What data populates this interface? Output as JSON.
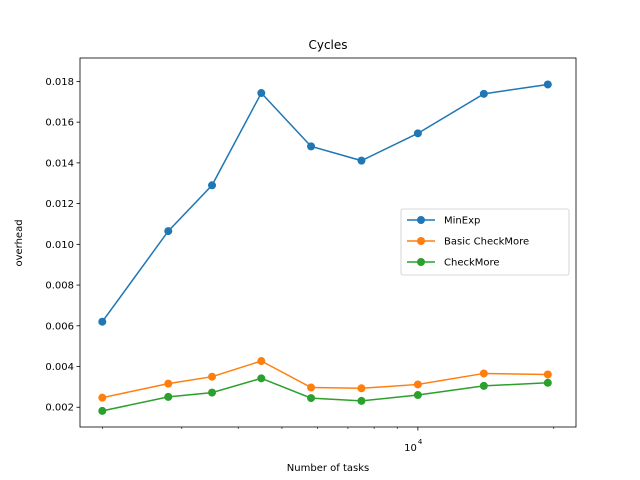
{
  "chart_data": {
    "type": "line",
    "title": "Cycles",
    "xlabel": "Number of tasks",
    "ylabel": "overhead",
    "xscale": "log",
    "xlim": [
      1785,
      22400
    ],
    "ylim": [
      0.00103,
      0.01915
    ],
    "x_major_tick": {
      "value": 10000,
      "label": "10",
      "exponent": "4"
    },
    "x_minor_ticks": [
      2000,
      3000,
      4000,
      5000,
      6000,
      7000,
      8000,
      9000,
      20000
    ],
    "y_ticks": [
      0.002,
      0.004,
      0.006,
      0.008,
      0.01,
      0.012,
      0.014,
      0.016,
      0.018
    ],
    "y_tick_labels": [
      "0.002",
      "0.004",
      "0.006",
      "0.008",
      "0.010",
      "0.012",
      "0.014",
      "0.016",
      "0.018"
    ],
    "grid": false,
    "legend_position": "center-right",
    "x": [
      2000,
      2800,
      3500,
      4500,
      5800,
      7500,
      10000,
      14000,
      19400
    ],
    "series": [
      {
        "name": "MinExp",
        "color": "#1f77b4",
        "values": [
          0.0062,
          0.01065,
          0.0129,
          0.01743,
          0.01481,
          0.01411,
          0.01545,
          0.01739,
          0.01785
        ]
      },
      {
        "name": "Basic CheckMore",
        "color": "#ff7f0e",
        "values": [
          0.00247,
          0.00316,
          0.0035,
          0.00427,
          0.00297,
          0.00293,
          0.00312,
          0.00366,
          0.00361
        ]
      },
      {
        "name": "CheckMore",
        "color": "#2ca02c",
        "values": [
          0.00182,
          0.00251,
          0.00272,
          0.00342,
          0.00245,
          0.00231,
          0.0026,
          0.00305,
          0.0032
        ]
      }
    ]
  }
}
